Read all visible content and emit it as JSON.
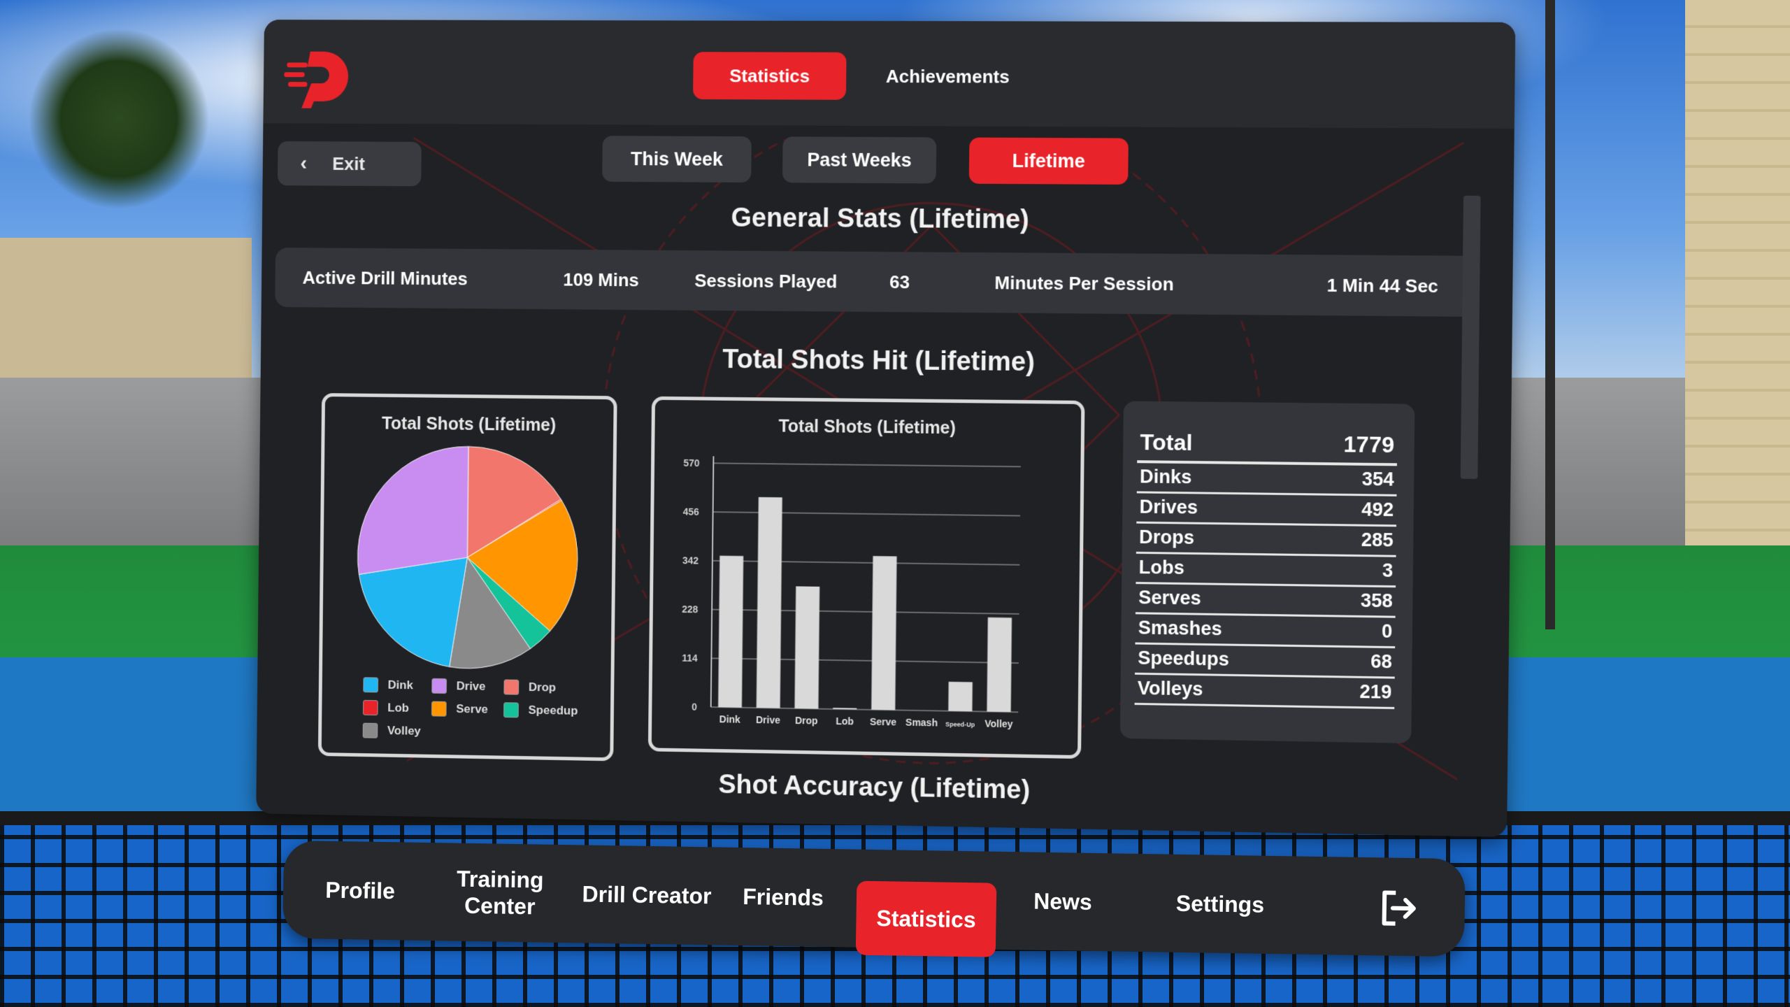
{
  "header": {
    "tabs": [
      {
        "label": "Statistics",
        "active": true
      },
      {
        "label": "Achievements",
        "active": false
      }
    ]
  },
  "exit_label": "Exit",
  "period_tabs": [
    {
      "label": "This Week",
      "active": false
    },
    {
      "label": "Past Weeks",
      "active": false
    },
    {
      "label": "Lifetime",
      "active": true
    }
  ],
  "general_stats": {
    "title": "General Stats (Lifetime)",
    "active_drill_label": "Active Drill Minutes",
    "active_drill_value": "109 Mins",
    "sessions_label": "Sessions Played",
    "sessions_value": "63",
    "minutes_per_session_label": "Minutes Per Session",
    "minutes_per_session_value": "1 Min 44 Sec"
  },
  "shots_section_title": "Total Shots Hit (Lifetime)",
  "accuracy_section_title": "Shot Accuracy (Lifetime)",
  "pie_title": "Total Shots (Lifetime)",
  "bar_title": "Total Shots (Lifetime)",
  "legend": [
    {
      "label": "Dink",
      "color": "#1fb6f2"
    },
    {
      "label": "Drive",
      "color": "#c98df2"
    },
    {
      "label": "Drop",
      "color": "#f2766b"
    },
    {
      "label": "Lob",
      "color": "#e8242a"
    },
    {
      "label": "Serve",
      "color": "#ff9500"
    },
    {
      "label": "Speedup",
      "color": "#14c39a"
    },
    {
      "label": "Volley",
      "color": "#8a8a8a"
    }
  ],
  "totals": {
    "header_label": "Total",
    "header_value": "1779",
    "rows": [
      {
        "name": "Dinks",
        "value": "354"
      },
      {
        "name": "Drives",
        "value": "492"
      },
      {
        "name": "Drops",
        "value": "285"
      },
      {
        "name": "Lobs",
        "value": "3"
      },
      {
        "name": "Serves",
        "value": "358"
      },
      {
        "name": "Smashes",
        "value": "0"
      },
      {
        "name": "Speedups",
        "value": "68"
      },
      {
        "name": "Volleys",
        "value": "219"
      }
    ]
  },
  "chart_data": [
    {
      "type": "pie",
      "title": "Total Shots (Lifetime)",
      "categories": [
        "Dink",
        "Drive",
        "Drop",
        "Lob",
        "Serve",
        "Speedup",
        "Volley"
      ],
      "values": [
        354,
        492,
        285,
        3,
        358,
        68,
        219
      ],
      "colors": [
        "#1fb6f2",
        "#c98df2",
        "#f2766b",
        "#e8242a",
        "#ff9500",
        "#14c39a",
        "#8a8a8a"
      ],
      "legend_position": "bottom"
    },
    {
      "type": "bar",
      "title": "Total Shots (Lifetime)",
      "categories": [
        "Dink",
        "Drive",
        "Drop",
        "Lob",
        "Serve",
        "Smash",
        "Speed-Up",
        "Volley"
      ],
      "values": [
        354,
        492,
        285,
        3,
        358,
        0,
        68,
        219
      ],
      "yticks": [
        "0",
        "114",
        "228",
        "342",
        "456",
        "570"
      ],
      "ylim": [
        0,
        570
      ],
      "grid": true,
      "bar_color": "#d9d9d9"
    }
  ],
  "nav": {
    "items": [
      {
        "label": "Profile",
        "active": false
      },
      {
        "label": "Training Center",
        "active": false
      },
      {
        "label": "Drill Creator",
        "active": false
      },
      {
        "label": "Friends",
        "active": false
      },
      {
        "label": "Statistics",
        "active": true
      },
      {
        "label": "News",
        "active": false
      },
      {
        "label": "Settings",
        "active": false
      }
    ]
  },
  "colors": {
    "accent": "#e8242a",
    "panel": "#202124",
    "panel_light": "#34353a"
  }
}
